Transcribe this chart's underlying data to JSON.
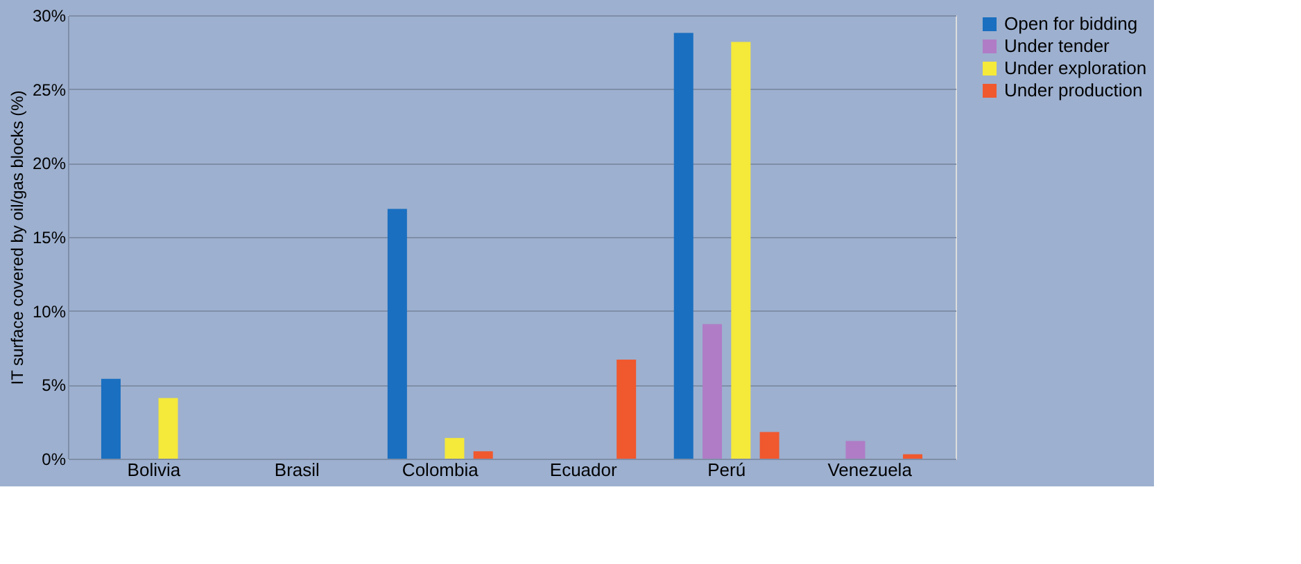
{
  "chart_data": {
    "type": "bar",
    "ylabel": "IT surface covered by oil/gas blocks (%)",
    "categories": [
      "Bolivia",
      "Brasil",
      "Colombia",
      "Ecuador",
      "Perú",
      "Venezuela"
    ],
    "series": [
      {
        "name": "Open for bidding",
        "color": "#1a6fc0",
        "values": [
          5.4,
          null,
          16.9,
          null,
          28.8,
          null
        ]
      },
      {
        "name": "Under tender",
        "color": "#b07cc6",
        "values": [
          null,
          null,
          null,
          null,
          9.1,
          1.2
        ]
      },
      {
        "name": "Under exploration",
        "color": "#f5e93a",
        "values": [
          4.1,
          null,
          1.4,
          null,
          28.2,
          null
        ]
      },
      {
        "name": "Under production",
        "color": "#f0582e",
        "values": [
          null,
          null,
          0.5,
          6.7,
          1.8,
          0.3
        ]
      }
    ],
    "ylim": [
      0,
      30
    ],
    "yticks": [
      {
        "value": 0,
        "label": "0%"
      },
      {
        "value": 5,
        "label": "5%"
      },
      {
        "value": 10,
        "label": "10%"
      },
      {
        "value": 15,
        "label": "15%"
      },
      {
        "value": 20,
        "label": "20%"
      },
      {
        "value": 25,
        "label": "25%"
      },
      {
        "value": 30,
        "label": "30%"
      }
    ],
    "grid": "y",
    "legend": "right"
  }
}
